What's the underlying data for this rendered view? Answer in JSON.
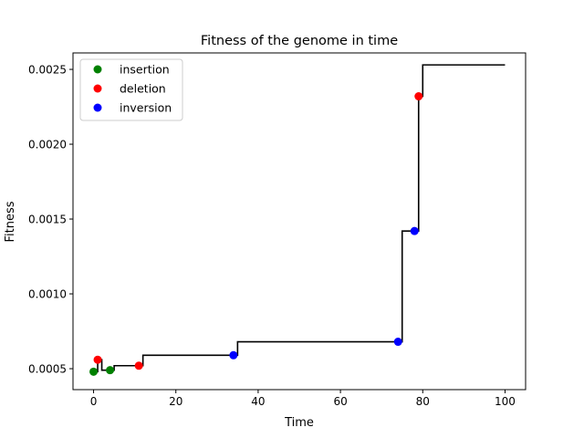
{
  "chart_data": {
    "type": "line",
    "title": "Fitness of the genome in time",
    "xlabel": "Time",
    "ylabel": "Fitness",
    "xlim": [
      -5,
      105
    ],
    "ylim": [
      0.00036,
      0.00261
    ],
    "xticks": [
      0,
      20,
      40,
      60,
      80,
      100
    ],
    "xtick_labels": [
      "0",
      "20",
      "40",
      "60",
      "80",
      "100"
    ],
    "yticks": [
      0.0005,
      0.001,
      0.0015,
      0.002,
      0.0025
    ],
    "ytick_labels": [
      "0.0005",
      "0.0010",
      "0.0015",
      "0.0020",
      "0.0025"
    ],
    "grid": false,
    "legend_position": "upper-left",
    "line": {
      "color": "#000000",
      "x": [
        0,
        1,
        1,
        2,
        2,
        4,
        4,
        5,
        5,
        11,
        11,
        12,
        12,
        34,
        34,
        35,
        35,
        74,
        74,
        75,
        75,
        78,
        78,
        79,
        79,
        80,
        80,
        100
      ],
      "y": [
        0.00048,
        0.00048,
        0.00056,
        0.00056,
        0.00049,
        0.00049,
        0.00049,
        0.00049,
        0.00052,
        0.00052,
        0.00052,
        0.00052,
        0.00059,
        0.00059,
        0.00059,
        0.00059,
        0.00068,
        0.00068,
        0.00068,
        0.00068,
        0.00142,
        0.00142,
        0.00142,
        0.00142,
        0.00232,
        0.00232,
        0.00253,
        0.00253
      ]
    },
    "series": [
      {
        "name": "insertion",
        "color": "#008000",
        "x": [
          0,
          4
        ],
        "y": [
          0.00048,
          0.00049
        ]
      },
      {
        "name": "deletion",
        "color": "#ff0000",
        "x": [
          1,
          11,
          79
        ],
        "y": [
          0.00056,
          0.00052,
          0.00232
        ]
      },
      {
        "name": "inversion",
        "color": "#0000ff",
        "x": [
          34,
          74,
          78
        ],
        "y": [
          0.00059,
          0.00068,
          0.00142
        ]
      }
    ]
  }
}
